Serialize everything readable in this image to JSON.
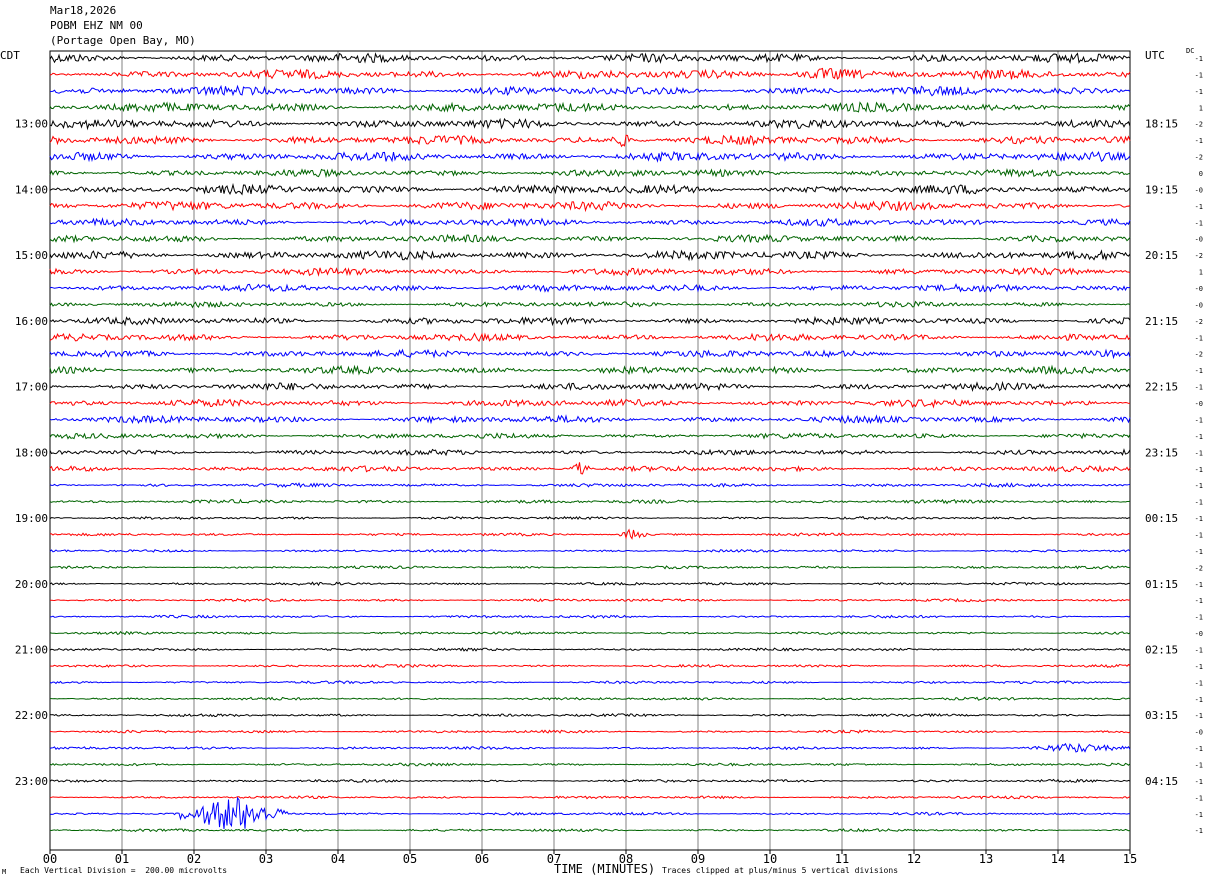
{
  "header": {
    "date": "Mar18,2026",
    "station": "POBM EHZ NM 00",
    "location": "(Portage Open Bay, MO)"
  },
  "left_timezone": "CDT",
  "right_timezone": "UTC",
  "dc_label": "DC",
  "footer": {
    "vertical_division": "Each Vertical Division =  200.00 microvolts",
    "xlabel": "TIME (MINUTES)",
    "clip_note": "Traces clipped at plus/minus 5 vertical divisions",
    "corner_mark": "M"
  },
  "colors": {
    "trace_cycle": [
      "#000000",
      "#ff0000",
      "#0000ff",
      "#006400"
    ],
    "grid": "#808080",
    "frame": "#000000"
  },
  "chart_data": {
    "type": "seismogram",
    "xlabel": "TIME (MINUTES)",
    "x_ticks": [
      "00",
      "01",
      "02",
      "03",
      "04",
      "05",
      "06",
      "07",
      "08",
      "09",
      "10",
      "11",
      "12",
      "13",
      "14",
      "15"
    ],
    "xlim": [
      0,
      15
    ],
    "trace_count": 48,
    "traces_per_hour": 4,
    "minutes_per_trace": 15,
    "units": "microvolts",
    "vertical_division_microvolts": 200,
    "clip_divisions": 5,
    "hour_labels_left": [
      "13:00",
      "14:00",
      "15:00",
      "16:00",
      "17:00",
      "18:00",
      "19:00",
      "20:00",
      "21:00",
      "22:00",
      "23:00"
    ],
    "hour_labels_right": [
      "18:15",
      "19:15",
      "20:15",
      "21:15",
      "22:15",
      "23:15",
      "00:15",
      "01:15",
      "02:15",
      "03:15",
      "04:15"
    ],
    "dc_offsets": [
      "-1",
      "-1",
      "-1",
      "1",
      "-2",
      "-1",
      "-2",
      "0",
      "-0",
      "-1",
      "-1",
      "-0",
      "-2",
      "1",
      "-0",
      "-0",
      "-2",
      "-1",
      "-2",
      "-1",
      "-1",
      "-0",
      "-1",
      "-1",
      "-1",
      "-1",
      "-1",
      "-1",
      "-1",
      "-1",
      "-1",
      "-2",
      "-1",
      "-1",
      "-1",
      "-0",
      "-1",
      "-1",
      "-1",
      "-1",
      "-1",
      "-0",
      "-1",
      "-1",
      "-1",
      "-1",
      "-1",
      "-1"
    ],
    "noise_amplitude": [
      5,
      5,
      5,
      5,
      5,
      5,
      5,
      4,
      5,
      5,
      4,
      4,
      5,
      4,
      4,
      3,
      4,
      4,
      4,
      4,
      4,
      4,
      4,
      3,
      3,
      3,
      2,
      2,
      1.5,
      1.5,
      1.5,
      1.5,
      1.5,
      1.5,
      1.5,
      1.5,
      1.5,
      1.5,
      1.5,
      1.5,
      1.5,
      1.5,
      1.5,
      1.5,
      1.5,
      1.5,
      1.5,
      1.5
    ],
    "events": [
      {
        "trace": 1,
        "minute_start": 10.2,
        "minute_end": 11.3,
        "peak_amplitude": 5
      },
      {
        "trace": 5,
        "minute_start": 7.8,
        "minute_end": 8.1,
        "peak_amplitude": 6
      },
      {
        "trace": 25,
        "minute_start": 7.2,
        "minute_end": 7.5,
        "peak_amplitude": 7
      },
      {
        "trace": 29,
        "minute_start": 7.9,
        "minute_end": 8.3,
        "peak_amplitude": 6
      },
      {
        "trace": 42,
        "minute_start": 13.5,
        "minute_end": 15.0,
        "peak_amplitude": 4
      },
      {
        "trace": 46,
        "minute_start": 1.8,
        "minute_end": 3.3,
        "peak_amplitude": 18
      }
    ]
  }
}
